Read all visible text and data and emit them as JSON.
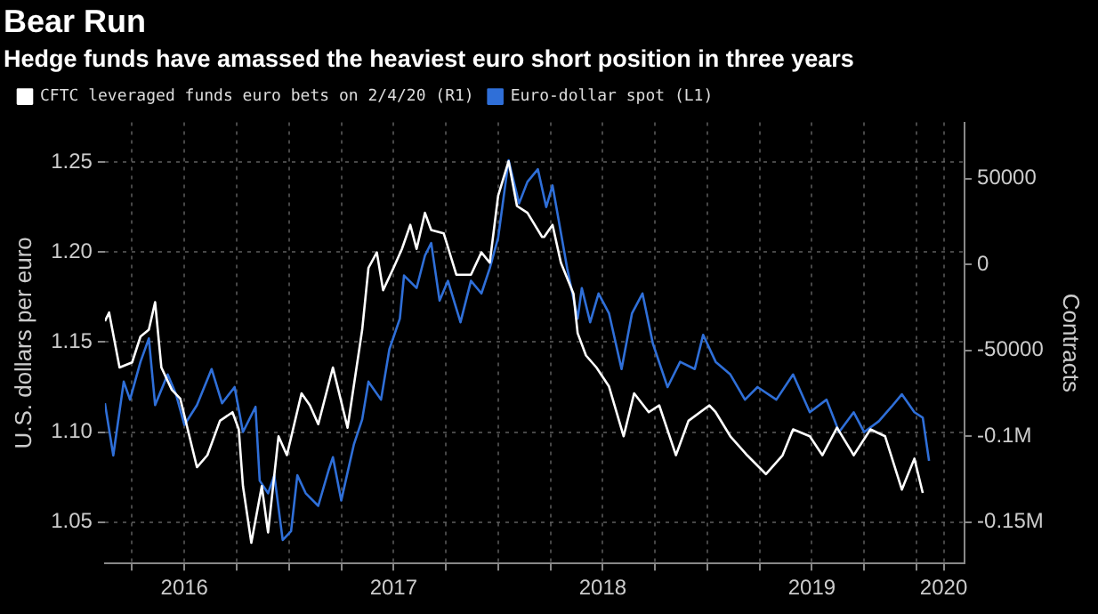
{
  "chart_data": {
    "type": "line",
    "title": "Bear Run",
    "subtitle": "Hedge funds have amassed the heaviest euro short position in three years",
    "ylabel": "U.S. dollars per euro",
    "y2label": "Contracts",
    "series": [
      {
        "name": "CFTC leveraged funds euro bets on 2/4/20 (R1)",
        "color": "#ffffff",
        "axis": "y2",
        "x": [
          2016.12,
          2016.14,
          2016.19,
          2016.25,
          2016.29,
          2016.33,
          2016.36,
          2016.39,
          2016.44,
          2016.48,
          2016.56,
          2016.61,
          2016.67,
          2016.73,
          2016.76,
          2016.78,
          2016.82,
          2016.87,
          2016.9,
          2016.95,
          2016.99,
          2017.06,
          2017.1,
          2017.14,
          2017.21,
          2017.28,
          2017.35,
          2017.38,
          2017.42,
          2017.45,
          2017.5,
          2017.54,
          2017.58,
          2017.61,
          2017.65,
          2017.68,
          2017.74,
          2017.8,
          2017.87,
          2017.92,
          2017.96,
          2018.0,
          2018.05,
          2018.09,
          2018.14,
          2018.21,
          2018.22,
          2018.26,
          2018.3,
          2018.36,
          2018.38,
          2018.42,
          2018.47,
          2018.53,
          2018.6,
          2018.65,
          2018.72,
          2018.77,
          2018.85,
          2018.91,
          2019.01,
          2019.04,
          2019.11,
          2019.19,
          2019.28,
          2019.36,
          2019.41,
          2019.49,
          2019.55,
          2019.62,
          2019.7,
          2019.78,
          2019.85,
          2019.93,
          2019.99,
          2020.03
        ],
        "values": [
          -33000,
          -28000,
          -60000,
          -57000,
          -42000,
          -38000,
          -22000,
          -60000,
          -73000,
          -78000,
          -118000,
          -111000,
          -91000,
          -86000,
          -96000,
          -129000,
          -162000,
          -129000,
          -156000,
          -100000,
          -111000,
          -75000,
          -82000,
          -93000,
          -60000,
          -95000,
          -38000,
          -2000,
          7000,
          -15000,
          -2000,
          9000,
          23000,
          9000,
          30000,
          20000,
          18000,
          -6000,
          -6000,
          7000,
          1000,
          40000,
          60000,
          34000,
          30000,
          16000,
          16000,
          23000,
          1000,
          -17000,
          -40000,
          -53000,
          -60000,
          -71000,
          -100000,
          -75000,
          -86000,
          -82000,
          -111000,
          -91000,
          -82000,
          -86000,
          -100000,
          -111000,
          -122000,
          -111000,
          -96000,
          -100000,
          -111000,
          -95000,
          -111000,
          -96000,
          -100000,
          -131000,
          -113000,
          -133000
        ]
      },
      {
        "name": "Euro-dollar spot (L1)",
        "color": "#2f6fd8",
        "axis": "y",
        "x": [
          2016.12,
          2016.16,
          2016.21,
          2016.24,
          2016.29,
          2016.33,
          2016.36,
          2016.42,
          2016.46,
          2016.5,
          2016.56,
          2016.63,
          2016.68,
          2016.74,
          2016.78,
          2016.84,
          2016.86,
          2016.9,
          2016.93,
          2016.97,
          2017.01,
          2017.04,
          2017.08,
          2017.14,
          2017.19,
          2017.21,
          2017.25,
          2017.31,
          2017.35,
          2017.38,
          2017.44,
          2017.48,
          2017.53,
          2017.55,
          2017.61,
          2017.65,
          2017.68,
          2017.72,
          2017.76,
          2017.82,
          2017.87,
          2017.92,
          2017.96,
          2018.0,
          2018.05,
          2018.1,
          2018.14,
          2018.19,
          2018.23,
          2018.26,
          2018.33,
          2018.38,
          2018.4,
          2018.44,
          2018.48,
          2018.53,
          2018.59,
          2018.64,
          2018.69,
          2018.74,
          2018.81,
          2018.87,
          2018.94,
          2018.98,
          2019.04,
          2019.11,
          2019.18,
          2019.24,
          2019.33,
          2019.41,
          2019.49,
          2019.57,
          2019.63,
          2019.7,
          2019.75,
          2019.82,
          2019.88,
          2019.93,
          2019.99,
          2020.03,
          2020.06
        ],
        "values": [
          1.116,
          1.087,
          1.128,
          1.118,
          1.139,
          1.152,
          1.115,
          1.132,
          1.121,
          1.104,
          1.115,
          1.135,
          1.116,
          1.125,
          1.1,
          1.114,
          1.073,
          1.066,
          1.076,
          1.04,
          1.045,
          1.076,
          1.066,
          1.059,
          1.079,
          1.086,
          1.062,
          1.093,
          1.107,
          1.128,
          1.118,
          1.146,
          1.163,
          1.187,
          1.18,
          1.198,
          1.205,
          1.173,
          1.184,
          1.161,
          1.184,
          1.177,
          1.191,
          1.208,
          1.251,
          1.227,
          1.239,
          1.246,
          1.225,
          1.237,
          1.191,
          1.163,
          1.18,
          1.161,
          1.177,
          1.166,
          1.135,
          1.166,
          1.177,
          1.149,
          1.125,
          1.139,
          1.135,
          1.154,
          1.139,
          1.132,
          1.118,
          1.125,
          1.118,
          1.132,
          1.111,
          1.118,
          1.1,
          1.111,
          1.1,
          1.106,
          1.114,
          1.121,
          1.111,
          1.108,
          1.084
        ]
      }
    ],
    "xlim": [
      2016.12,
      2020.23
    ],
    "xticks": [
      {
        "value": 2016.25,
        "label": null
      },
      {
        "value": 2016.5,
        "label": "2016"
      },
      {
        "value": 2016.75,
        "label": null
      },
      {
        "value": 2017,
        "label": null
      },
      {
        "value": 2017.25,
        "label": null
      },
      {
        "value": 2017.5,
        "label": "2017"
      },
      {
        "value": 2017.75,
        "label": null
      },
      {
        "value": 2018,
        "label": null
      },
      {
        "value": 2018.25,
        "label": null
      },
      {
        "value": 2018.5,
        "label": "2018"
      },
      {
        "value": 2018.75,
        "label": null
      },
      {
        "value": 2019,
        "label": null
      },
      {
        "value": 2019.25,
        "label": null
      },
      {
        "value": 2019.5,
        "label": "2019"
      },
      {
        "value": 2019.75,
        "label": null
      },
      {
        "value": 2020,
        "label": null
      },
      {
        "value": 2020.13,
        "label": "2020"
      }
    ],
    "ylim": [
      1.027,
      1.272
    ],
    "yticks": [
      1.05,
      {
        "value": 1.1,
        "label": "1.10"
      },
      1.15,
      {
        "value": 1.2,
        "label": "1.20"
      },
      1.25
    ],
    "y2lim": [
      -174000,
      82600
    ],
    "y2ticks": [
      {
        "value": -150000,
        "label": "-0.15M"
      },
      {
        "value": -100000,
        "label": "-0.1M"
      },
      -50000,
      0,
      50000
    ],
    "grid": true,
    "legend": "top left",
    "marker": "none",
    "line_style": "solid"
  }
}
